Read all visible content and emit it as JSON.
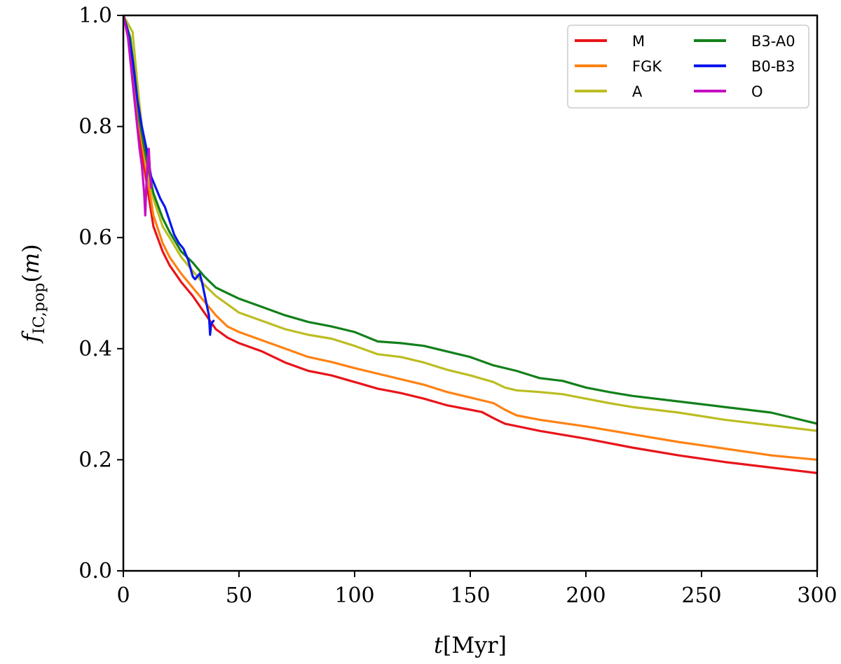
{
  "chart_data": {
    "type": "line",
    "xlabel": "t[Myr]",
    "ylabel": "f_IC,pop(m)",
    "xlim": [
      0,
      300
    ],
    "ylim": [
      0,
      1.0
    ],
    "xticks": [
      "0",
      "50",
      "100",
      "150",
      "200",
      "250",
      "300"
    ],
    "yticks": [
      "0.0",
      "0.2",
      "0.4",
      "0.6",
      "0.8",
      "1.0"
    ],
    "legend_position": "top-right",
    "grid": false,
    "series": [
      {
        "name": "M",
        "color": "#e8141a",
        "points": [
          [
            0,
            1.0
          ],
          [
            3,
            0.95
          ],
          [
            5,
            0.87
          ],
          [
            7,
            0.78
          ],
          [
            10,
            0.7
          ],
          [
            13,
            0.62
          ],
          [
            17,
            0.575
          ],
          [
            20,
            0.55
          ],
          [
            25,
            0.52
          ],
          [
            30,
            0.495
          ],
          [
            35,
            0.465
          ],
          [
            40,
            0.435
          ],
          [
            45,
            0.42
          ],
          [
            50,
            0.41
          ],
          [
            60,
            0.395
          ],
          [
            70,
            0.375
          ],
          [
            80,
            0.36
          ],
          [
            90,
            0.352
          ],
          [
            100,
            0.34
          ],
          [
            110,
            0.328
          ],
          [
            120,
            0.32
          ],
          [
            130,
            0.31
          ],
          [
            140,
            0.298
          ],
          [
            150,
            0.29
          ],
          [
            155,
            0.286
          ],
          [
            160,
            0.275
          ],
          [
            165,
            0.265
          ],
          [
            180,
            0.252
          ],
          [
            200,
            0.238
          ],
          [
            220,
            0.222
          ],
          [
            240,
            0.208
          ],
          [
            260,
            0.196
          ],
          [
            280,
            0.186
          ],
          [
            300,
            0.176
          ]
        ]
      },
      {
        "name": "FGK",
        "color": "#ff8213",
        "points": [
          [
            0,
            1.0
          ],
          [
            3,
            0.95
          ],
          [
            5,
            0.88
          ],
          [
            7,
            0.8
          ],
          [
            10,
            0.72
          ],
          [
            13,
            0.64
          ],
          [
            17,
            0.59
          ],
          [
            20,
            0.565
          ],
          [
            25,
            0.535
          ],
          [
            30,
            0.51
          ],
          [
            35,
            0.485
          ],
          [
            40,
            0.46
          ],
          [
            45,
            0.44
          ],
          [
            50,
            0.43
          ],
          [
            60,
            0.415
          ],
          [
            70,
            0.4
          ],
          [
            80,
            0.385
          ],
          [
            90,
            0.376
          ],
          [
            100,
            0.365
          ],
          [
            110,
            0.355
          ],
          [
            120,
            0.345
          ],
          [
            130,
            0.335
          ],
          [
            140,
            0.322
          ],
          [
            150,
            0.312
          ],
          [
            160,
            0.302
          ],
          [
            165,
            0.29
          ],
          [
            170,
            0.28
          ],
          [
            180,
            0.272
          ],
          [
            200,
            0.26
          ],
          [
            220,
            0.246
          ],
          [
            240,
            0.232
          ],
          [
            260,
            0.22
          ],
          [
            280,
            0.208
          ],
          [
            300,
            0.2
          ]
        ]
      },
      {
        "name": "A",
        "color": "#bcbd22",
        "points": [
          [
            0,
            1.0
          ],
          [
            4,
            0.97
          ],
          [
            6,
            0.88
          ],
          [
            8,
            0.8
          ],
          [
            10,
            0.73
          ],
          [
            13,
            0.67
          ],
          [
            17,
            0.62
          ],
          [
            20,
            0.6
          ],
          [
            25,
            0.565
          ],
          [
            30,
            0.54
          ],
          [
            35,
            0.515
          ],
          [
            40,
            0.495
          ],
          [
            45,
            0.48
          ],
          [
            50,
            0.465
          ],
          [
            60,
            0.45
          ],
          [
            70,
            0.435
          ],
          [
            80,
            0.425
          ],
          [
            90,
            0.418
          ],
          [
            100,
            0.405
          ],
          [
            110,
            0.39
          ],
          [
            120,
            0.385
          ],
          [
            130,
            0.375
          ],
          [
            140,
            0.362
          ],
          [
            150,
            0.352
          ],
          [
            160,
            0.34
          ],
          [
            165,
            0.33
          ],
          [
            170,
            0.325
          ],
          [
            180,
            0.322
          ],
          [
            190,
            0.318
          ],
          [
            200,
            0.31
          ],
          [
            210,
            0.302
          ],
          [
            220,
            0.295
          ],
          [
            240,
            0.285
          ],
          [
            260,
            0.272
          ],
          [
            280,
            0.262
          ],
          [
            300,
            0.252
          ]
        ]
      },
      {
        "name": "B3-A0",
        "color": "#13801a",
        "points": [
          [
            0,
            1.0
          ],
          [
            3,
            0.96
          ],
          [
            5,
            0.89
          ],
          [
            7,
            0.81
          ],
          [
            10,
            0.74
          ],
          [
            13,
            0.68
          ],
          [
            17,
            0.635
          ],
          [
            20,
            0.61
          ],
          [
            25,
            0.575
          ],
          [
            30,
            0.555
          ],
          [
            35,
            0.53
          ],
          [
            40,
            0.51
          ],
          [
            45,
            0.5
          ],
          [
            50,
            0.49
          ],
          [
            60,
            0.475
          ],
          [
            70,
            0.46
          ],
          [
            80,
            0.448
          ],
          [
            90,
            0.44
          ],
          [
            100,
            0.43
          ],
          [
            110,
            0.413
          ],
          [
            120,
            0.41
          ],
          [
            130,
            0.405
          ],
          [
            140,
            0.395
          ],
          [
            150,
            0.385
          ],
          [
            160,
            0.37
          ],
          [
            170,
            0.36
          ],
          [
            180,
            0.347
          ],
          [
            190,
            0.342
          ],
          [
            200,
            0.33
          ],
          [
            210,
            0.322
          ],
          [
            220,
            0.315
          ],
          [
            240,
            0.305
          ],
          [
            260,
            0.295
          ],
          [
            280,
            0.285
          ],
          [
            300,
            0.265
          ]
        ]
      },
      {
        "name": "B0-B3",
        "color": "#0a16ee",
        "points": [
          [
            0,
            1.0
          ],
          [
            2,
            0.97
          ],
          [
            4,
            0.92
          ],
          [
            6,
            0.85
          ],
          [
            8,
            0.8
          ],
          [
            10,
            0.76
          ],
          [
            12,
            0.71
          ],
          [
            13,
            0.7
          ],
          [
            14,
            0.69
          ],
          [
            16,
            0.67
          ],
          [
            18,
            0.655
          ],
          [
            20,
            0.63
          ],
          [
            22,
            0.605
          ],
          [
            24,
            0.59
          ],
          [
            26,
            0.58
          ],
          [
            28,
            0.56
          ],
          [
            29,
            0.545
          ],
          [
            30,
            0.53
          ],
          [
            31,
            0.525
          ],
          [
            32,
            0.53
          ],
          [
            33,
            0.535
          ],
          [
            34,
            0.52
          ],
          [
            35,
            0.5
          ],
          [
            36,
            0.48
          ],
          [
            37,
            0.46
          ],
          [
            37.5,
            0.425
          ],
          [
            38,
            0.445
          ],
          [
            39,
            0.45
          ]
        ]
      },
      {
        "name": "O",
        "color": "#c50fc2",
        "points": [
          [
            0,
            1.0
          ],
          [
            2,
            0.96
          ],
          [
            4,
            0.88
          ],
          [
            6,
            0.8
          ],
          [
            7,
            0.76
          ],
          [
            8,
            0.73
          ],
          [
            9,
            0.68
          ],
          [
            9.5,
            0.64
          ],
          [
            10,
            0.7
          ],
          [
            10.5,
            0.74
          ],
          [
            11,
            0.76
          ],
          [
            11.5,
            0.72
          ],
          [
            12,
            0.69
          ]
        ]
      }
    ]
  }
}
